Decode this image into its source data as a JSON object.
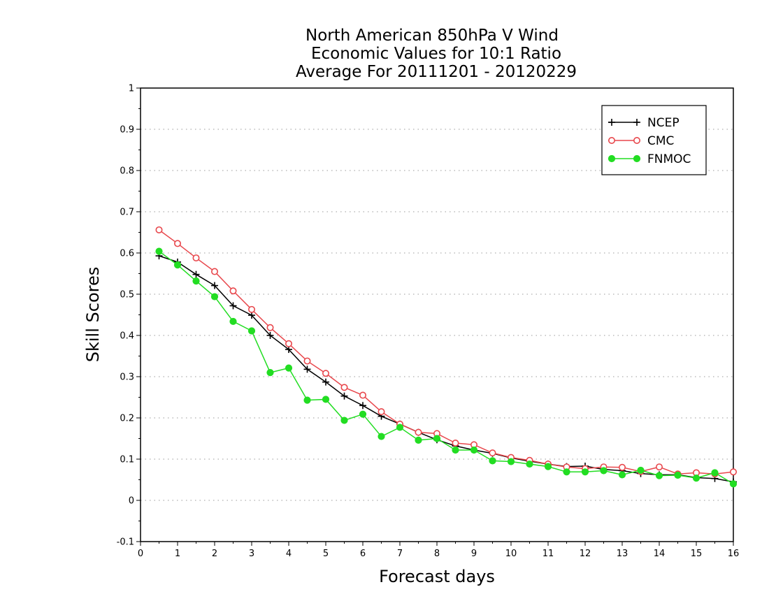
{
  "chart_data": {
    "type": "line",
    "title_lines": [
      "North American 850hPa V Wind",
      "Economic Values for 10:1 Ratio",
      "Average For 20111201 - 20120229"
    ],
    "xlabel": "Forecast days",
    "ylabel": "Skill Scores",
    "xlim": [
      0,
      16
    ],
    "ylim": [
      -0.1,
      1
    ],
    "x_ticks": [
      "0",
      "1",
      "2",
      "3",
      "4",
      "5",
      "6",
      "7",
      "8",
      "9",
      "10",
      "11",
      "12",
      "13",
      "14",
      "15",
      "16"
    ],
    "y_ticks": [
      "-0.1",
      "0",
      "0.1",
      "0.2",
      "0.3",
      "0.4",
      "0.5",
      "0.6",
      "0.7",
      "0.8",
      "0.9",
      "1"
    ],
    "grid": "horizontal dotted",
    "legend_position": "top-right",
    "x": [
      0.5,
      1,
      1.5,
      2,
      2.5,
      3,
      3.5,
      4,
      4.5,
      5,
      5.5,
      6,
      6.5,
      7,
      7.5,
      8,
      8.5,
      9,
      9.5,
      10,
      10.5,
      11,
      11.5,
      12,
      12.5,
      13,
      13.5,
      14,
      14.5,
      15,
      15.5,
      16
    ],
    "series": [
      {
        "name": "NCEP",
        "color": "#000000",
        "marker": "plus",
        "values": [
          0.593,
          0.578,
          0.548,
          0.521,
          0.472,
          0.449,
          0.4,
          0.366,
          0.318,
          0.287,
          0.253,
          0.23,
          0.204,
          0.185,
          0.165,
          0.147,
          0.132,
          0.122,
          0.114,
          0.103,
          0.095,
          0.088,
          0.082,
          0.083,
          0.075,
          0.072,
          0.065,
          0.062,
          0.062,
          0.055,
          0.053,
          0.045
        ]
      },
      {
        "name": "CMC",
        "color": "#e8474c",
        "marker": "open-circle",
        "values": [
          0.656,
          0.623,
          0.588,
          0.555,
          0.508,
          0.463,
          0.419,
          0.38,
          0.338,
          0.308,
          0.274,
          0.255,
          0.215,
          0.185,
          0.165,
          0.162,
          0.139,
          0.135,
          0.115,
          0.104,
          0.097,
          0.088,
          0.081,
          0.077,
          0.081,
          0.08,
          0.07,
          0.081,
          0.064,
          0.067,
          0.064,
          0.069
        ]
      },
      {
        "name": "FNMOC",
        "color": "#22dd22",
        "marker": "filled-circle",
        "values": [
          0.604,
          0.571,
          0.532,
          0.494,
          0.434,
          0.411,
          0.31,
          0.321,
          0.243,
          0.245,
          0.194,
          0.209,
          0.155,
          0.177,
          0.146,
          0.15,
          0.122,
          0.122,
          0.096,
          0.094,
          0.088,
          0.082,
          0.069,
          0.069,
          0.072,
          0.062,
          0.073,
          0.06,
          0.061,
          0.054,
          0.067,
          0.04
        ]
      }
    ]
  }
}
